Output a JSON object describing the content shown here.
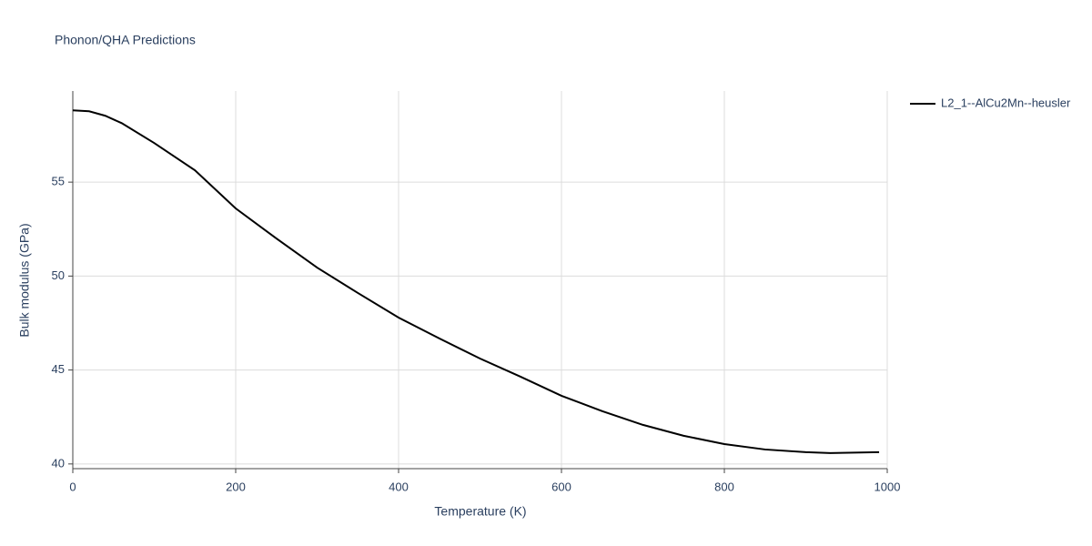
{
  "chart_data": {
    "type": "line",
    "title": "Phonon/QHA Predictions",
    "x_label": "Temperature (K)",
    "y_label": "Bulk modulus (GPa)",
    "x": [
      0,
      20,
      40,
      60,
      100,
      150,
      200,
      250,
      300,
      350,
      400,
      450,
      500,
      550,
      600,
      650,
      700,
      750,
      800,
      850,
      900,
      930,
      990
    ],
    "series": [
      {
        "name": "L2_1--AlCu2Mn--heusler",
        "color": "#000000",
        "values": [
          58.82,
          58.77,
          58.53,
          58.14,
          57.08,
          55.63,
          53.6,
          52.0,
          50.45,
          49.1,
          47.79,
          46.68,
          45.61,
          44.64,
          43.63,
          42.81,
          42.08,
          41.5,
          41.06,
          40.77,
          40.63,
          40.58,
          40.63
        ]
      }
    ],
    "xlim": [
      0,
      1000
    ],
    "xticks": [
      0,
      200,
      400,
      600,
      800,
      1000
    ],
    "ylim": [
      39.75,
      59.85
    ],
    "yticks": [
      40,
      45,
      50,
      55
    ],
    "grid": true,
    "legend": "top-right"
  }
}
